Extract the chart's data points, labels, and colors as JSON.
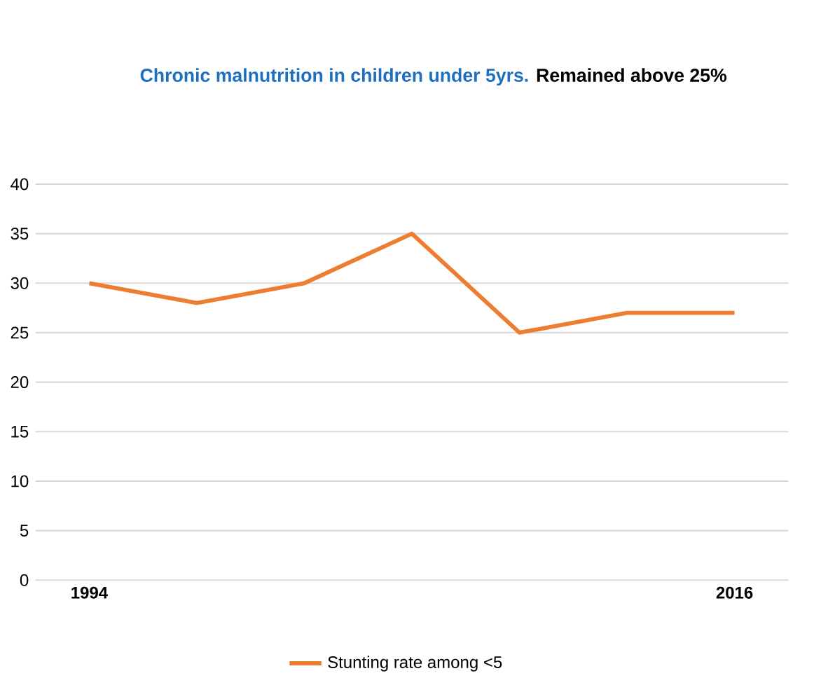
{
  "chart_data": {
    "type": "line",
    "title": "Chronic malnutrition in children under 5yrs.",
    "subtitle": "Remained above 25%",
    "categories": [
      "1994",
      null,
      null,
      null,
      null,
      null,
      "2016"
    ],
    "series": [
      {
        "name": "Stunting rate among <5",
        "color": "#ed7d31",
        "values": [
          30,
          28,
          30,
          35,
          25,
          27,
          27
        ]
      }
    ],
    "ylim": [
      0,
      40
    ],
    "yticks": [
      0,
      5,
      10,
      15,
      20,
      25,
      30,
      35,
      40
    ],
    "grid": "y",
    "legend": "bottom",
    "line_style": "solid",
    "marker": "none"
  }
}
